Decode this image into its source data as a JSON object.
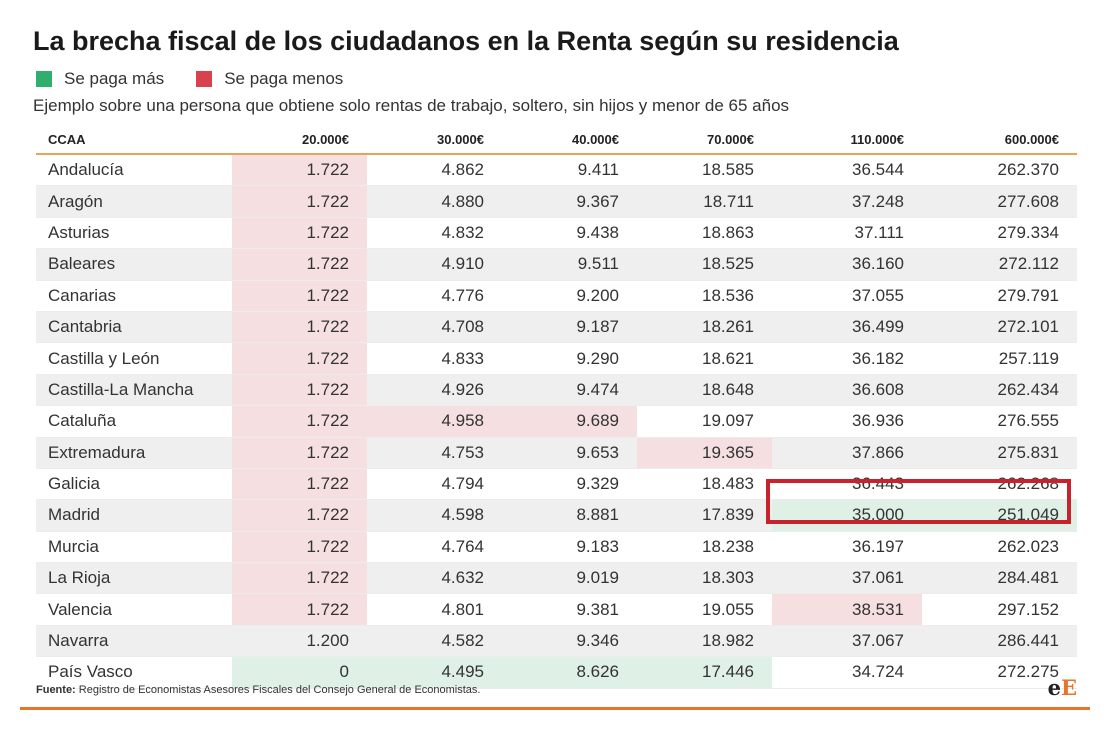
{
  "title": "La brecha fiscal de los ciudadanos en la Renta según su residencia",
  "legend": {
    "more_label": "Se paga más",
    "more_color": "#2fae6e",
    "less_label": "Se paga menos",
    "less_color": "#d8424f"
  },
  "subtitle": "Ejemplo sobre una persona que obtiene solo rentas de trabajo, soltero, sin hijos y menor de 65 años",
  "source": {
    "label": "Fuente:",
    "text": " Registro de Economistas Asesores Fiscales del Consejo General de Economistas."
  },
  "logo": {
    "e": "e",
    "E": "E"
  },
  "chart_data": {
    "type": "table",
    "title": "La brecha fiscal de los ciudadanos en la Renta según su residencia",
    "columns": [
      "CCAA",
      "20.000€",
      "30.000€",
      "40.000€",
      "70.000€",
      "110.000€",
      "600.000€"
    ],
    "rows": [
      {
        "region": "Andalucía",
        "values": [
          "1.722",
          "4.862",
          "9.411",
          "18.585",
          "36.544",
          "262.370"
        ],
        "hl": [
          "less",
          "",
          "",
          "",
          "",
          ""
        ]
      },
      {
        "region": "Aragón",
        "values": [
          "1.722",
          "4.880",
          "9.367",
          "18.711",
          "37.248",
          "277.608"
        ],
        "hl": [
          "less",
          "",
          "",
          "",
          "",
          ""
        ]
      },
      {
        "region": "Asturias",
        "values": [
          "1.722",
          "4.832",
          "9.438",
          "18.863",
          "37.111",
          "279.334"
        ],
        "hl": [
          "less",
          "",
          "",
          "",
          "",
          ""
        ]
      },
      {
        "region": "Baleares",
        "values": [
          "1.722",
          "4.910",
          "9.511",
          "18.525",
          "36.160",
          "272.112"
        ],
        "hl": [
          "less",
          "",
          "",
          "",
          "",
          ""
        ]
      },
      {
        "region": "Canarias",
        "values": [
          "1.722",
          "4.776",
          "9.200",
          "18.536",
          "37.055",
          "279.791"
        ],
        "hl": [
          "less",
          "",
          "",
          "",
          "",
          ""
        ]
      },
      {
        "region": "Cantabria",
        "values": [
          "1.722",
          "4.708",
          "9.187",
          "18.261",
          "36.499",
          "272.101"
        ],
        "hl": [
          "less",
          "",
          "",
          "",
          "",
          ""
        ]
      },
      {
        "region": "Castilla y León",
        "values": [
          "1.722",
          "4.833",
          "9.290",
          "18.621",
          "36.182",
          "257.119"
        ],
        "hl": [
          "less",
          "",
          "",
          "",
          "",
          ""
        ]
      },
      {
        "region": "Castilla-La Mancha",
        "values": [
          "1.722",
          "4.926",
          "9.474",
          "18.648",
          "36.608",
          "262.434"
        ],
        "hl": [
          "less",
          "",
          "",
          "",
          "",
          ""
        ]
      },
      {
        "region": "Cataluña",
        "values": [
          "1.722",
          "4.958",
          "9.689",
          "19.097",
          "36.936",
          "276.555"
        ],
        "hl": [
          "less",
          "less",
          "less",
          "",
          "",
          ""
        ]
      },
      {
        "region": "Extremadura",
        "values": [
          "1.722",
          "4.753",
          "9.653",
          "19.365",
          "37.866",
          "275.831"
        ],
        "hl": [
          "less",
          "",
          "",
          "less",
          "",
          ""
        ]
      },
      {
        "region": "Galicia",
        "values": [
          "1.722",
          "4.794",
          "9.329",
          "18.483",
          "36.443",
          "262.268"
        ],
        "hl": [
          "less",
          "",
          "",
          "",
          "",
          ""
        ]
      },
      {
        "region": "Madrid",
        "values": [
          "1.722",
          "4.598",
          "8.881",
          "17.839",
          "35.000",
          "251.049"
        ],
        "hl": [
          "less",
          "",
          "",
          "",
          "more",
          "more"
        ]
      },
      {
        "region": "Murcia",
        "values": [
          "1.722",
          "4.764",
          "9.183",
          "18.238",
          "36.197",
          "262.023"
        ],
        "hl": [
          "less",
          "",
          "",
          "",
          "",
          ""
        ]
      },
      {
        "region": "La Rioja",
        "values": [
          "1.722",
          "4.632",
          "9.019",
          "18.303",
          "37.061",
          "284.481"
        ],
        "hl": [
          "less",
          "",
          "",
          "",
          "",
          ""
        ]
      },
      {
        "region": "Valencia",
        "values": [
          "1.722",
          "4.801",
          "9.381",
          "19.055",
          "38.531",
          "297.152"
        ],
        "hl": [
          "less",
          "",
          "",
          "",
          "less",
          ""
        ]
      },
      {
        "region": "Navarra",
        "values": [
          "1.200",
          "4.582",
          "9.346",
          "18.982",
          "37.067",
          "286.441"
        ],
        "hl": [
          "",
          "",
          "",
          "",
          "",
          ""
        ]
      },
      {
        "region": "País Vasco",
        "values": [
          "0",
          "4.495",
          "8.626",
          "17.446",
          "34.724",
          "272.275"
        ],
        "hl": [
          "more",
          "more",
          "more",
          "more",
          "",
          ""
        ]
      }
    ],
    "highlighted": {
      "region": "Madrid",
      "columns": [
        "110.000€",
        "600.000€"
      ]
    }
  }
}
